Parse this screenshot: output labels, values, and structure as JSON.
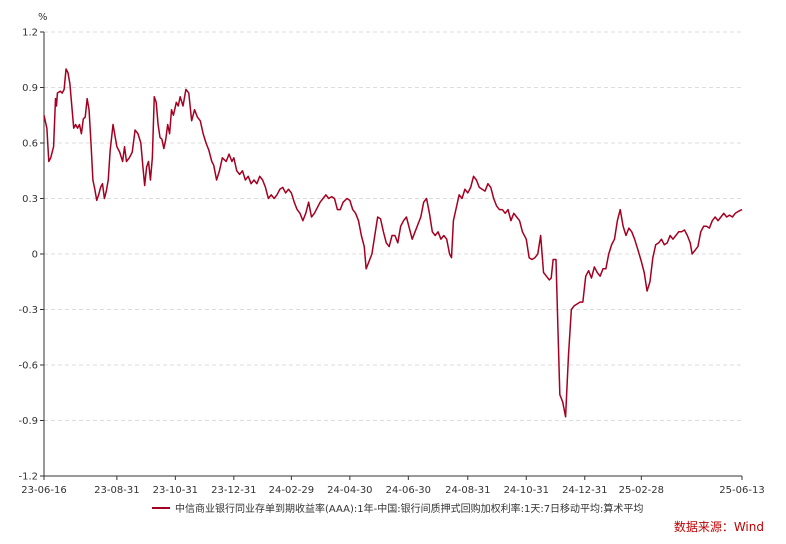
{
  "chart_data": {
    "type": "line",
    "unit": "%",
    "ylim": [
      -1.2,
      1.2
    ],
    "y_ticks": [
      1.2,
      0.9,
      0.6,
      0.3,
      0,
      -0.3,
      -0.6,
      -0.9,
      -1.2
    ],
    "y_tick_labels": [
      "1.2",
      "0.9",
      "0.6",
      "0.3",
      "0",
      "-0.3",
      "-0.6",
      "-0.9",
      "-1.2"
    ],
    "x_range": [
      "2023-06-16",
      "2025-06-13"
    ],
    "x_ticks": [
      "2023-06-16",
      "2023-08-31",
      "2023-10-31",
      "2023-12-31",
      "2024-02-29",
      "2024-04-30",
      "2024-06-30",
      "2024-08-31",
      "2024-10-31",
      "2024-12-31",
      "2025-02-28",
      "2025-06-13"
    ],
    "x_tick_labels": [
      "23-06-16",
      "23-08-31",
      "23-10-31",
      "23-12-31",
      "24-02-29",
      "24-04-30",
      "24-06-30",
      "24-08-31",
      "24-10-31",
      "24-12-31",
      "25-02-28",
      "25-06-13"
    ],
    "grid": "horizontal dashed",
    "legend_position": "bottom",
    "series": [
      {
        "name": "中信商业银行同业存单到期收益率(AAA):1年-中国:银行间质押式回购加权利率:1天:7日移动平均:算术平均",
        "color": "#a50021",
        "points": [
          [
            "2023-06-16",
            0.75
          ],
          [
            "2023-06-19",
            0.68
          ],
          [
            "2023-06-21",
            0.5
          ],
          [
            "2023-06-23",
            0.52
          ],
          [
            "2023-06-26",
            0.58
          ],
          [
            "2023-06-28",
            0.84
          ],
          [
            "2023-06-29",
            0.8
          ],
          [
            "2023-06-30",
            0.87
          ],
          [
            "2023-07-03",
            0.88
          ],
          [
            "2023-07-05",
            0.87
          ],
          [
            "2023-07-07",
            0.89
          ],
          [
            "2023-07-09",
            1.0
          ],
          [
            "2023-07-11",
            0.98
          ],
          [
            "2023-07-13",
            0.92
          ],
          [
            "2023-07-15",
            0.8
          ],
          [
            "2023-07-17",
            0.68
          ],
          [
            "2023-07-19",
            0.7
          ],
          [
            "2023-07-21",
            0.68
          ],
          [
            "2023-07-23",
            0.7
          ],
          [
            "2023-07-25",
            0.65
          ],
          [
            "2023-07-27",
            0.73
          ],
          [
            "2023-07-29",
            0.74
          ],
          [
            "2023-07-31",
            0.84
          ],
          [
            "2023-08-02",
            0.78
          ],
          [
            "2023-08-04",
            0.6
          ],
          [
            "2023-08-06",
            0.4
          ],
          [
            "2023-08-08",
            0.35
          ],
          [
            "2023-08-10",
            0.29
          ],
          [
            "2023-08-12",
            0.32
          ],
          [
            "2023-08-14",
            0.36
          ],
          [
            "2023-08-16",
            0.38
          ],
          [
            "2023-08-18",
            0.3
          ],
          [
            "2023-08-20",
            0.34
          ],
          [
            "2023-08-22",
            0.4
          ],
          [
            "2023-08-24",
            0.56
          ],
          [
            "2023-08-27",
            0.7
          ],
          [
            "2023-08-31",
            0.58
          ],
          [
            "2023-09-03",
            0.55
          ],
          [
            "2023-09-06",
            0.5
          ],
          [
            "2023-09-08",
            0.58
          ],
          [
            "2023-09-10",
            0.5
          ],
          [
            "2023-09-13",
            0.52
          ],
          [
            "2023-09-16",
            0.55
          ],
          [
            "2023-09-19",
            0.67
          ],
          [
            "2023-09-22",
            0.65
          ],
          [
            "2023-09-25",
            0.6
          ],
          [
            "2023-09-27",
            0.48
          ],
          [
            "2023-09-29",
            0.37
          ],
          [
            "2023-10-01",
            0.47
          ],
          [
            "2023-10-03",
            0.5
          ],
          [
            "2023-10-05",
            0.4
          ],
          [
            "2023-10-07",
            0.52
          ],
          [
            "2023-10-09",
            0.85
          ],
          [
            "2023-10-11",
            0.82
          ],
          [
            "2023-10-13",
            0.7
          ],
          [
            "2023-10-15",
            0.63
          ],
          [
            "2023-10-17",
            0.62
          ],
          [
            "2023-10-19",
            0.57
          ],
          [
            "2023-10-21",
            0.62
          ],
          [
            "2023-10-23",
            0.7
          ],
          [
            "2023-10-25",
            0.65
          ],
          [
            "2023-10-27",
            0.78
          ],
          [
            "2023-10-29",
            0.75
          ],
          [
            "2023-11-01",
            0.82
          ],
          [
            "2023-11-03",
            0.8
          ],
          [
            "2023-11-05",
            0.85
          ],
          [
            "2023-11-08",
            0.8
          ],
          [
            "2023-11-11",
            0.89
          ],
          [
            "2023-11-14",
            0.87
          ],
          [
            "2023-11-17",
            0.72
          ],
          [
            "2023-11-20",
            0.78
          ],
          [
            "2023-11-23",
            0.74
          ],
          [
            "2023-11-26",
            0.72
          ],
          [
            "2023-11-29",
            0.65
          ],
          [
            "2023-12-02",
            0.6
          ],
          [
            "2023-12-05",
            0.56
          ],
          [
            "2023-12-08",
            0.5
          ],
          [
            "2023-12-10",
            0.48
          ],
          [
            "2023-12-13",
            0.4
          ],
          [
            "2023-12-16",
            0.45
          ],
          [
            "2023-12-19",
            0.52
          ],
          [
            "2023-12-23",
            0.5
          ],
          [
            "2023-12-26",
            0.54
          ],
          [
            "2023-12-29",
            0.5
          ],
          [
            "2023-12-31",
            0.52
          ],
          [
            "2024-01-03",
            0.45
          ],
          [
            "2024-01-06",
            0.43
          ],
          [
            "2024-01-09",
            0.45
          ],
          [
            "2024-01-12",
            0.4
          ],
          [
            "2024-01-15",
            0.42
          ],
          [
            "2024-01-18",
            0.38
          ],
          [
            "2024-01-21",
            0.4
          ],
          [
            "2024-01-24",
            0.38
          ],
          [
            "2024-01-27",
            0.42
          ],
          [
            "2024-01-30",
            0.4
          ],
          [
            "2024-02-02",
            0.36
          ],
          [
            "2024-02-05",
            0.3
          ],
          [
            "2024-02-08",
            0.32
          ],
          [
            "2024-02-11",
            0.3
          ],
          [
            "2024-02-14",
            0.32
          ],
          [
            "2024-02-17",
            0.35
          ],
          [
            "2024-02-20",
            0.36
          ],
          [
            "2024-02-23",
            0.33
          ],
          [
            "2024-02-26",
            0.35
          ],
          [
            "2024-02-29",
            0.33
          ],
          [
            "2024-03-03",
            0.28
          ],
          [
            "2024-03-06",
            0.24
          ],
          [
            "2024-03-09",
            0.22
          ],
          [
            "2024-03-12",
            0.18
          ],
          [
            "2024-03-15",
            0.22
          ],
          [
            "2024-03-18",
            0.28
          ],
          [
            "2024-03-21",
            0.2
          ],
          [
            "2024-03-24",
            0.22
          ],
          [
            "2024-03-27",
            0.25
          ],
          [
            "2024-03-30",
            0.28
          ],
          [
            "2024-04-02",
            0.3
          ],
          [
            "2024-04-05",
            0.32
          ],
          [
            "2024-04-08",
            0.3
          ],
          [
            "2024-04-11",
            0.31
          ],
          [
            "2024-04-14",
            0.3
          ],
          [
            "2024-04-17",
            0.24
          ],
          [
            "2024-04-20",
            0.24
          ],
          [
            "2024-04-23",
            0.28
          ],
          [
            "2024-04-27",
            0.3
          ],
          [
            "2024-04-30",
            0.29
          ],
          [
            "2024-05-03",
            0.24
          ],
          [
            "2024-05-06",
            0.22
          ],
          [
            "2024-05-09",
            0.18
          ],
          [
            "2024-05-12",
            0.1
          ],
          [
            "2024-05-15",
            0.04
          ],
          [
            "2024-05-17",
            -0.08
          ],
          [
            "2024-05-20",
            -0.04
          ],
          [
            "2024-05-23",
            0.0
          ],
          [
            "2024-05-26",
            0.1
          ],
          [
            "2024-05-29",
            0.2
          ],
          [
            "2024-06-01",
            0.19
          ],
          [
            "2024-06-04",
            0.12
          ],
          [
            "2024-06-07",
            0.06
          ],
          [
            "2024-06-10",
            0.04
          ],
          [
            "2024-06-13",
            0.1
          ],
          [
            "2024-06-16",
            0.1
          ],
          [
            "2024-06-19",
            0.06
          ],
          [
            "2024-06-22",
            0.15
          ],
          [
            "2024-06-25",
            0.18
          ],
          [
            "2024-06-28",
            0.2
          ],
          [
            "2024-07-01",
            0.14
          ],
          [
            "2024-07-04",
            0.08
          ],
          [
            "2024-07-07",
            0.12
          ],
          [
            "2024-07-10",
            0.16
          ],
          [
            "2024-07-13",
            0.2
          ],
          [
            "2024-07-16",
            0.28
          ],
          [
            "2024-07-19",
            0.3
          ],
          [
            "2024-07-22",
            0.22
          ],
          [
            "2024-07-25",
            0.12
          ],
          [
            "2024-07-28",
            0.1
          ],
          [
            "2024-07-31",
            0.12
          ],
          [
            "2024-08-03",
            0.08
          ],
          [
            "2024-08-06",
            0.1
          ],
          [
            "2024-08-09",
            0.08
          ],
          [
            "2024-08-12",
            0.0
          ],
          [
            "2024-08-14",
            -0.02
          ],
          [
            "2024-08-16",
            0.18
          ],
          [
            "2024-08-19",
            0.25
          ],
          [
            "2024-08-22",
            0.32
          ],
          [
            "2024-08-25",
            0.3
          ],
          [
            "2024-08-28",
            0.35
          ],
          [
            "2024-08-31",
            0.33
          ],
          [
            "2024-09-03",
            0.36
          ],
          [
            "2024-09-06",
            0.42
          ],
          [
            "2024-09-09",
            0.4
          ],
          [
            "2024-09-12",
            0.36
          ],
          [
            "2024-09-15",
            0.35
          ],
          [
            "2024-09-18",
            0.34
          ],
          [
            "2024-09-21",
            0.38
          ],
          [
            "2024-09-24",
            0.36
          ],
          [
            "2024-09-27",
            0.3
          ],
          [
            "2024-09-30",
            0.26
          ],
          [
            "2024-10-03",
            0.24
          ],
          [
            "2024-10-06",
            0.24
          ],
          [
            "2024-10-09",
            0.22
          ],
          [
            "2024-10-12",
            0.24
          ],
          [
            "2024-10-15",
            0.18
          ],
          [
            "2024-10-18",
            0.22
          ],
          [
            "2024-10-21",
            0.2
          ],
          [
            "2024-10-24",
            0.18
          ],
          [
            "2024-10-27",
            0.12
          ],
          [
            "2024-10-31",
            0.08
          ],
          [
            "2024-11-03",
            -0.02
          ],
          [
            "2024-11-06",
            -0.03
          ],
          [
            "2024-11-09",
            -0.02
          ],
          [
            "2024-11-12",
            0.0
          ],
          [
            "2024-11-15",
            0.1
          ],
          [
            "2024-11-18",
            -0.1
          ],
          [
            "2024-11-21",
            -0.12
          ],
          [
            "2024-11-24",
            -0.14
          ],
          [
            "2024-11-26",
            -0.13
          ],
          [
            "2024-11-28",
            -0.03
          ],
          [
            "2024-12-01",
            -0.03
          ],
          [
            "2024-12-03",
            -0.4
          ],
          [
            "2024-12-05",
            -0.76
          ],
          [
            "2024-12-08",
            -0.8
          ],
          [
            "2024-12-11",
            -0.88
          ],
          [
            "2024-12-14",
            -0.55
          ],
          [
            "2024-12-17",
            -0.3
          ],
          [
            "2024-12-20",
            -0.28
          ],
          [
            "2024-12-23",
            -0.27
          ],
          [
            "2024-12-26",
            -0.26
          ],
          [
            "2024-12-29",
            -0.26
          ],
          [
            "2025-01-01",
            -0.12
          ],
          [
            "2025-01-04",
            -0.09
          ],
          [
            "2025-01-07",
            -0.13
          ],
          [
            "2025-01-10",
            -0.07
          ],
          [
            "2025-01-13",
            -0.1
          ],
          [
            "2025-01-16",
            -0.12
          ],
          [
            "2025-01-19",
            -0.08
          ],
          [
            "2025-01-22",
            -0.08
          ],
          [
            "2025-01-25",
            0.0
          ],
          [
            "2025-01-28",
            0.05
          ],
          [
            "2025-01-31",
            0.08
          ],
          [
            "2025-02-03",
            0.18
          ],
          [
            "2025-02-06",
            0.24
          ],
          [
            "2025-02-09",
            0.15
          ],
          [
            "2025-02-12",
            0.1
          ],
          [
            "2025-02-15",
            0.14
          ],
          [
            "2025-02-18",
            0.12
          ],
          [
            "2025-02-21",
            0.08
          ],
          [
            "2025-02-24",
            0.03
          ],
          [
            "2025-02-28",
            -0.04
          ],
          [
            "2025-03-03",
            -0.1
          ],
          [
            "2025-03-06",
            -0.2
          ],
          [
            "2025-03-09",
            -0.15
          ],
          [
            "2025-03-12",
            -0.02
          ],
          [
            "2025-03-15",
            0.05
          ],
          [
            "2025-03-18",
            0.06
          ],
          [
            "2025-03-21",
            0.08
          ],
          [
            "2025-03-24",
            0.05
          ],
          [
            "2025-03-27",
            0.06
          ],
          [
            "2025-03-30",
            0.1
          ],
          [
            "2025-04-02",
            0.08
          ],
          [
            "2025-04-05",
            0.1
          ],
          [
            "2025-04-08",
            0.12
          ],
          [
            "2025-04-11",
            0.12
          ],
          [
            "2025-04-14",
            0.13
          ],
          [
            "2025-04-17",
            0.1
          ],
          [
            "2025-04-20",
            0.06
          ],
          [
            "2025-04-22",
            0.0
          ],
          [
            "2025-04-25",
            0.02
          ],
          [
            "2025-04-28",
            0.04
          ],
          [
            "2025-05-01",
            0.12
          ],
          [
            "2025-05-04",
            0.15
          ],
          [
            "2025-05-07",
            0.15
          ],
          [
            "2025-05-10",
            0.14
          ],
          [
            "2025-05-13",
            0.18
          ],
          [
            "2025-05-16",
            0.2
          ],
          [
            "2025-05-19",
            0.18
          ],
          [
            "2025-05-22",
            0.2
          ],
          [
            "2025-05-25",
            0.22
          ],
          [
            "2025-05-28",
            0.2
          ],
          [
            "2025-05-31",
            0.21
          ],
          [
            "2025-06-03",
            0.2
          ],
          [
            "2025-06-06",
            0.22
          ],
          [
            "2025-06-09",
            0.23
          ],
          [
            "2025-06-13",
            0.24
          ]
        ]
      }
    ]
  },
  "source": "数据来源：Wind",
  "colors": {
    "line": "#a50021",
    "axis": "#333333",
    "grid": "#dddddd",
    "source": "#c00000"
  }
}
